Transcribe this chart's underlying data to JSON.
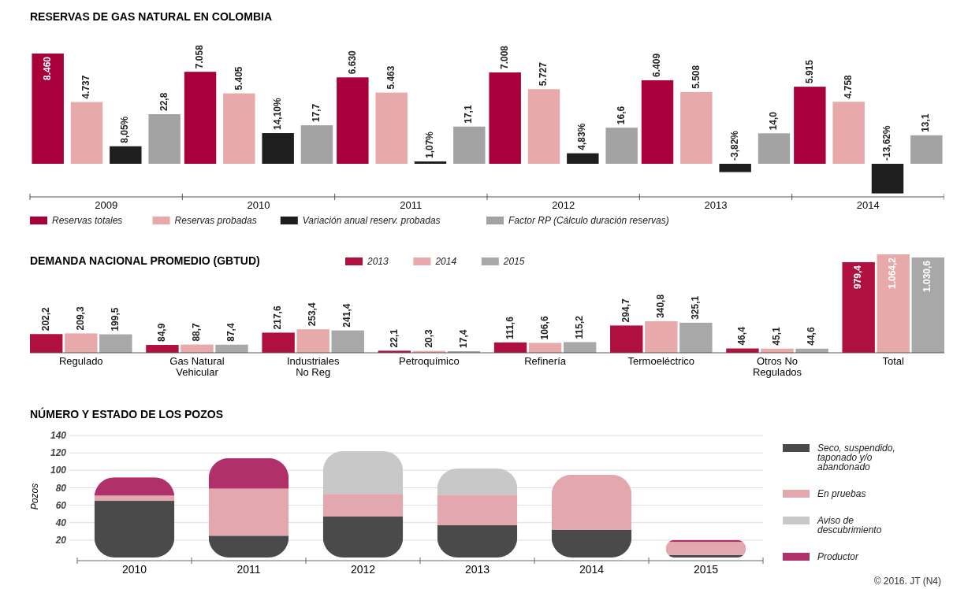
{
  "chart_data": [
    {
      "type": "bar",
      "title": "RESERVAS DE GAS NATURAL EN COLOMBIA",
      "categories": [
        "2009",
        "2010",
        "2011",
        "2012",
        "2013",
        "2014"
      ],
      "legend": "bottom",
      "tick_labels": "x",
      "series": [
        {
          "name": "Reservas totales",
          "color": "#a8003a",
          "axis": "y",
          "values": [
            8460,
            7058,
            6630,
            7008,
            6409,
            5915
          ],
          "value_labels": [
            "8.460",
            "7.058",
            "6.630",
            "7.008",
            "6.409",
            "5.915"
          ]
        },
        {
          "name": "Reservas probadas",
          "color": "#e8a9ab",
          "axis": "y",
          "values": [
            4737,
            5405,
            5463,
            5727,
            5508,
            4758
          ],
          "value_labels": [
            "4.737",
            "5.405",
            "5.463",
            "5.727",
            "5.508",
            "4.758"
          ]
        },
        {
          "name": "Variación anual reserv. probadas",
          "color": "#1e1e1e",
          "axis": "y2",
          "values": [
            8.05,
            14.1,
            1.07,
            4.83,
            -3.82,
            -13.62
          ],
          "value_labels": [
            "8,05%",
            "14,10%",
            "1,07%",
            "4,83%",
            "-3,82%",
            "-13,62%"
          ]
        },
        {
          "name": "Factor RP (Cálculo duración reservas)",
          "color": "#a3a3a3",
          "axis": "y2",
          "values": [
            22.8,
            17.7,
            17.1,
            16.6,
            14.0,
            13.1
          ],
          "value_labels": [
            "22,8",
            "17,7",
            "17,1",
            "16,6",
            "14,0",
            "13,1"
          ]
        }
      ]
    },
    {
      "type": "bar",
      "title": "DEMANDA NACIONAL PROMEDIO (GBTUD)",
      "categories": [
        "Regulado",
        "Gas Natural Vehicular",
        "Industriales No Reg",
        "Petroquímico",
        "Refinería",
        "Termoeléctrico",
        "Otros No Regulados",
        "Total"
      ],
      "legend": "top",
      "tick_labels": "x",
      "series": [
        {
          "name": "2013",
          "color": "#b0103f",
          "values": [
            202.2,
            84.9,
            217.6,
            22.1,
            111.6,
            294.7,
            46.4,
            979.4
          ],
          "value_labels": [
            "202,2",
            "84,9",
            "217,6",
            "22,1",
            "111,6",
            "294,7",
            "46,4",
            "979,4"
          ]
        },
        {
          "name": "2014",
          "color": "#e8a9ab",
          "values": [
            209.3,
            88.7,
            253.4,
            20.3,
            106.6,
            340.8,
            45.1,
            1064.2
          ],
          "value_labels": [
            "209,3",
            "88,7",
            "253,4",
            "20,3",
            "106,6",
            "340,8",
            "45,1",
            "1.064,2"
          ]
        },
        {
          "name": "2015",
          "color": "#a8a8a8",
          "values": [
            199.5,
            87.4,
            241.4,
            17.4,
            115.2,
            325.1,
            44.6,
            1030.6
          ],
          "value_labels": [
            "199,5",
            "87,4",
            "241,4",
            "17,4",
            "115,2",
            "325,1",
            "44,6",
            "1.030,6"
          ]
        }
      ]
    },
    {
      "type": "bar",
      "title": "NÚMERO Y ESTADO DE LOS POZOS",
      "ylabel": "Pozos",
      "categories": [
        "2010",
        "2011",
        "2012",
        "2013",
        "2014",
        "2015"
      ],
      "stacked": true,
      "grid": "y",
      "legend": "right",
      "ylim": [
        0,
        140
      ],
      "yticks": [
        20,
        40,
        60,
        80,
        100,
        120,
        140
      ],
      "annotations": [
        "© 2016. JT (N4)"
      ],
      "series": [
        {
          "name": "Seco, suspendido, taponado y/o abandonado",
          "color": "#4a4a4a",
          "values": [
            65,
            25,
            47,
            37,
            32,
            3
          ]
        },
        {
          "name": "En pruebas",
          "color": "#e3a7ae",
          "values": [
            6,
            54,
            26,
            35,
            63,
            15
          ]
        },
        {
          "name": "Aviso de descubrimiento",
          "color": "#c8c8c8",
          "values": [
            0,
            0,
            49,
            30,
            0,
            0
          ]
        },
        {
          "name": "Productor",
          "color": "#b0306a",
          "values": [
            21,
            35,
            0,
            0,
            0,
            2
          ]
        }
      ]
    }
  ]
}
